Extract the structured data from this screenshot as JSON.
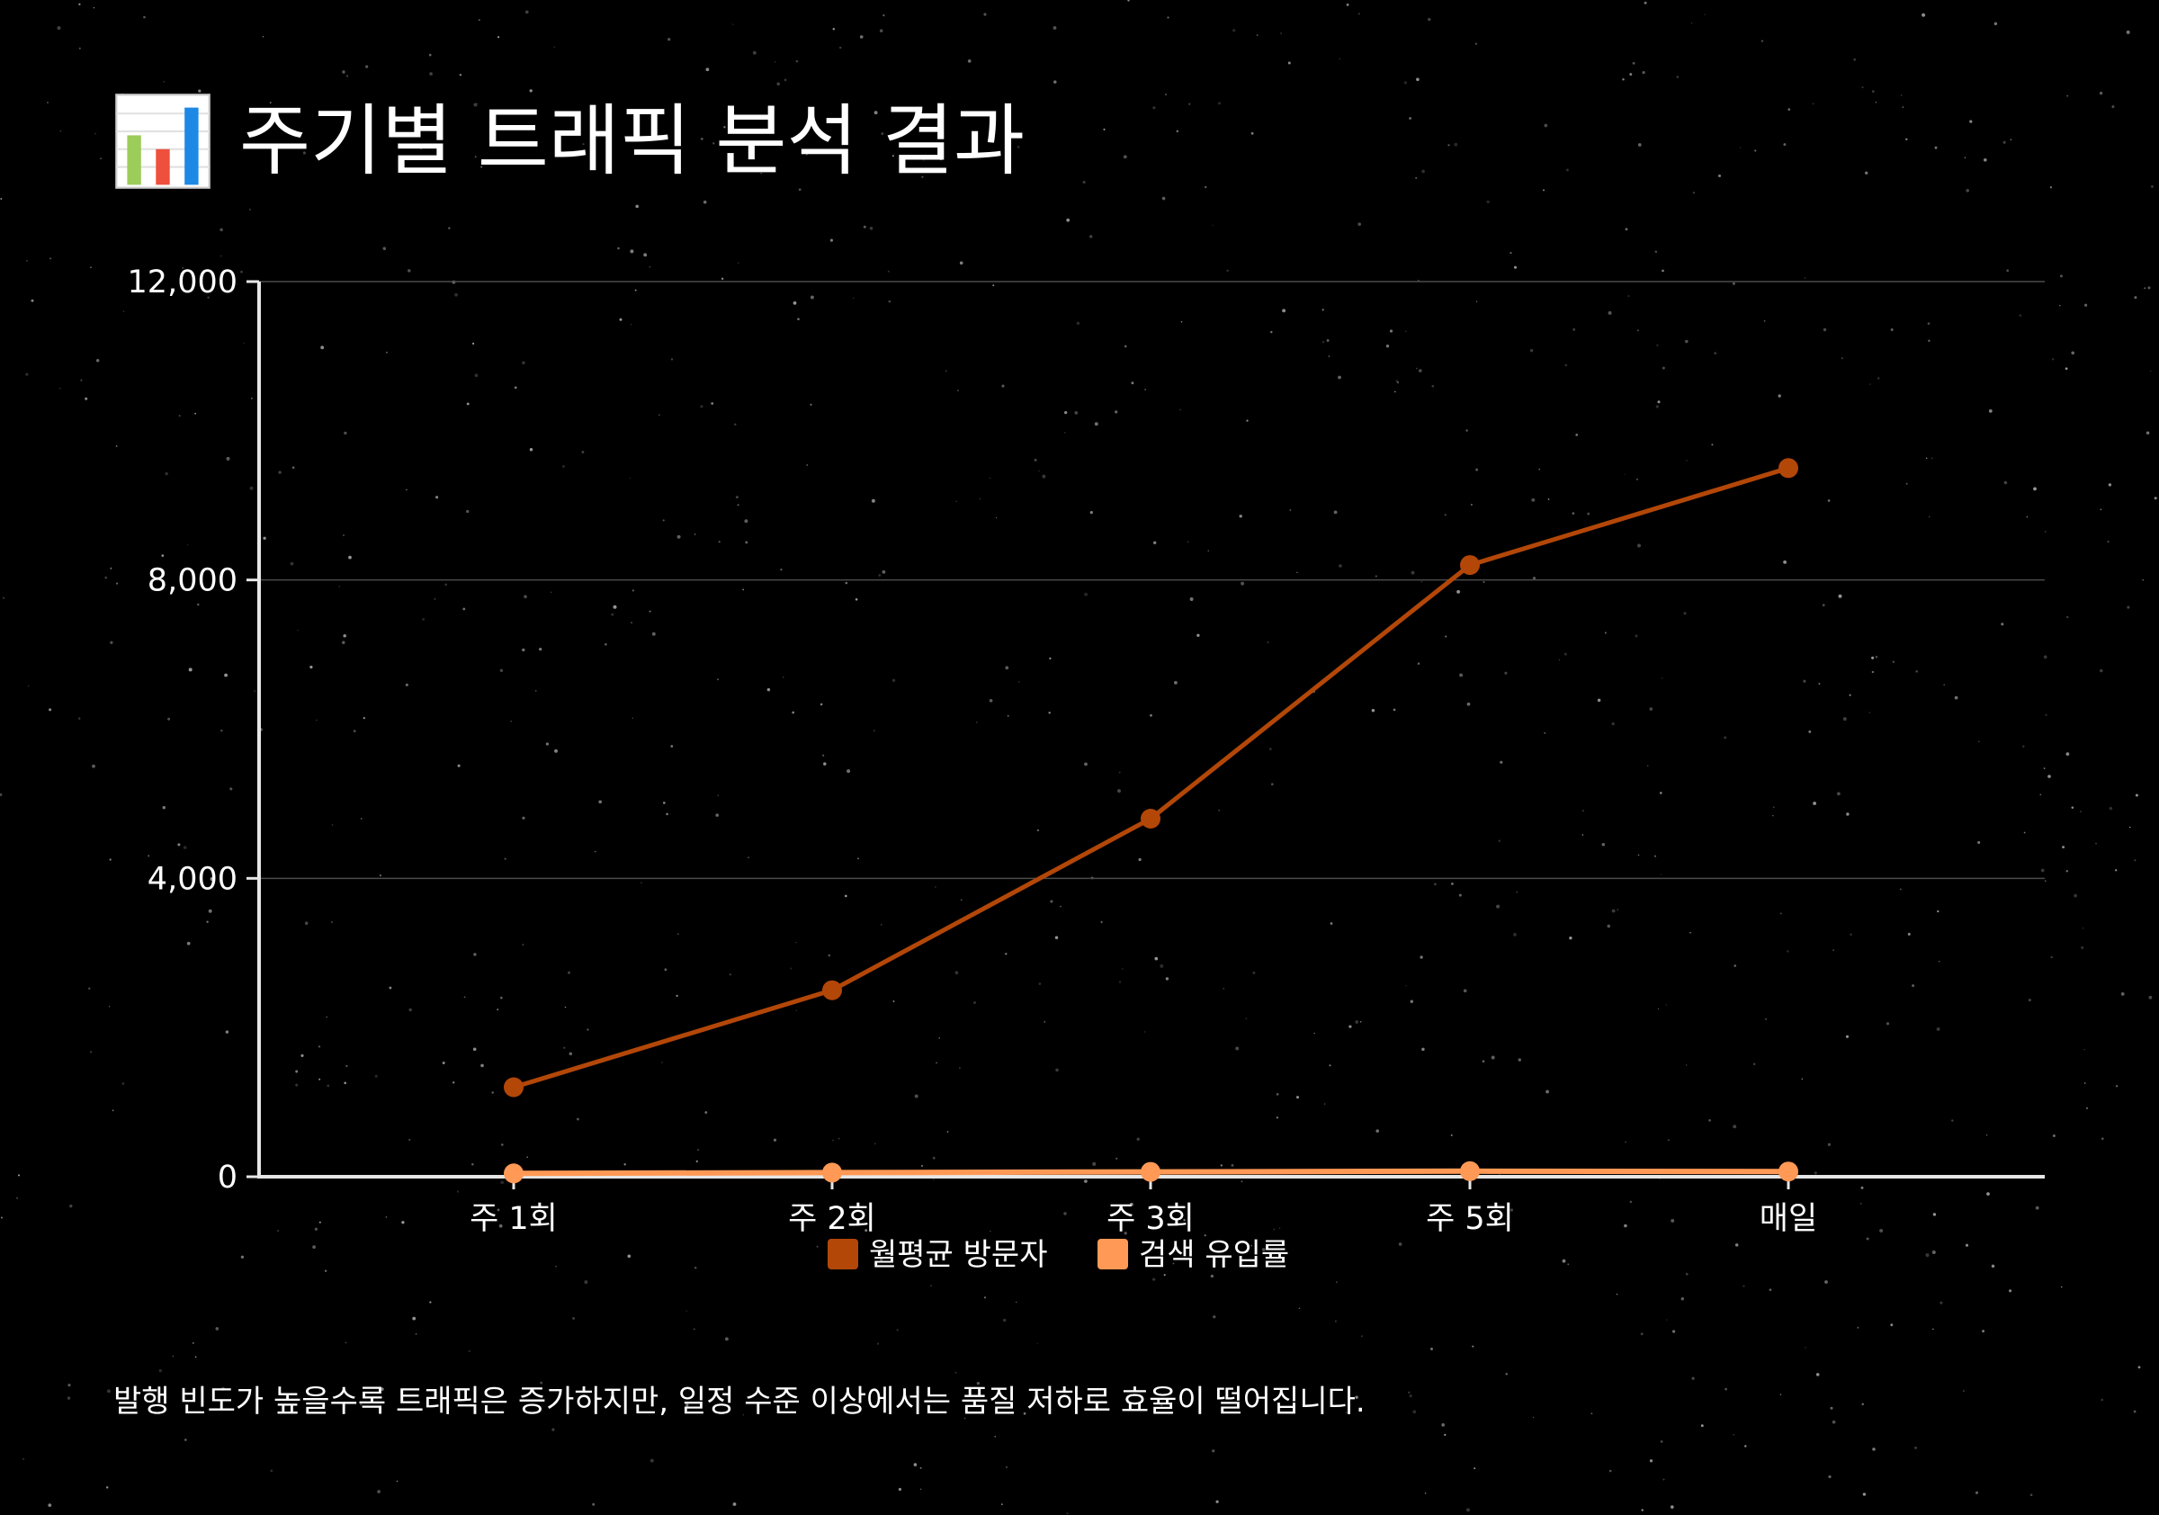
{
  "page": {
    "title": "주기별 트래픽 분석 결과",
    "title_icon": "bar-chart-icon",
    "caption": "발행 빈도가 높을수록 트래픽은 증가하지만, 일정 수준 이상에서는 품질 저하로 효율이 떨어집니다.",
    "background_color": "#000000"
  },
  "chart_data": {
    "type": "line",
    "title": "",
    "xlabel": "",
    "ylabel": "",
    "categories": [
      "주 1회",
      "주 2회",
      "주 3회",
      "주 5회",
      "매일"
    ],
    "ylim": [
      0,
      12000
    ],
    "yticks": [
      0,
      4000,
      8000,
      12000
    ],
    "ytick_labels": [
      "0",
      "4,000",
      "8,000",
      "12,000"
    ],
    "grid": true,
    "legend_position": "bottom-center",
    "series": [
      {
        "name": "월평균 방문자",
        "color": "#b34708",
        "values": [
          1200,
          2500,
          4800,
          8200,
          9500
        ]
      },
      {
        "name": "검색 유입률",
        "color": "#ff9955",
        "values": [
          45,
          55,
          65,
          75,
          70
        ]
      }
    ]
  }
}
